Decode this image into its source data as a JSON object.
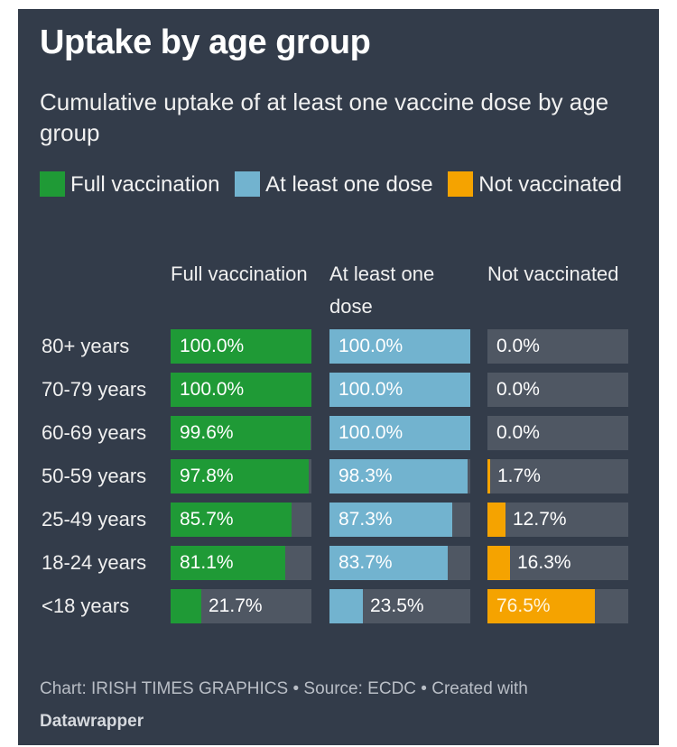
{
  "chart_data": {
    "type": "table",
    "title": "Uptake by age group",
    "subtitle": "Cumulative uptake of at least one vaccine dose by age group",
    "legend": [
      {
        "label": "Full vaccination",
        "color": "#1f9a36"
      },
      {
        "label": "At least one dose",
        "color": "#72b3cf"
      },
      {
        "label": "Not vaccinated",
        "color": "#f5a300"
      }
    ],
    "columns": [
      "Full vaccination",
      "At least one dose",
      "Not vaccinated"
    ],
    "colors": [
      "#1f9a36",
      "#72b3cf",
      "#f5a300"
    ],
    "categories": [
      "80+ years",
      "70-79 years",
      "60-69 years",
      "50-59 years",
      "25-49 years",
      "18-24 years",
      "<18 years"
    ],
    "series": [
      {
        "name": "Full vaccination",
        "values": [
          100.0,
          100.0,
          99.6,
          97.8,
          85.7,
          81.1,
          21.7
        ]
      },
      {
        "name": "At least one dose",
        "values": [
          100.0,
          100.0,
          100.0,
          98.3,
          87.3,
          83.7,
          23.5
        ]
      },
      {
        "name": "Not vaccinated",
        "values": [
          0.0,
          0.0,
          0.0,
          1.7,
          12.7,
          16.3,
          76.5
        ]
      }
    ],
    "unit": "%",
    "max": 100
  },
  "footer": {
    "text": "Chart: IRISH TIMES GRAPHICS • Source: ECDC • Created with",
    "brand": "Datawrapper"
  }
}
